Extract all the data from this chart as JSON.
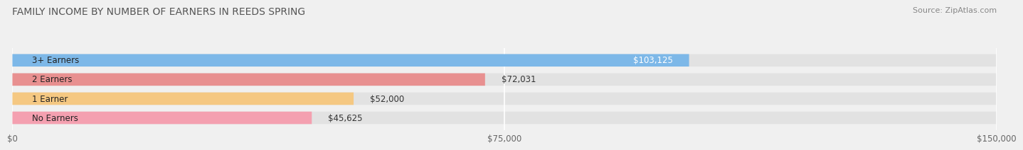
{
  "title": "FAMILY INCOME BY NUMBER OF EARNERS IN REEDS SPRING",
  "source": "Source: ZipAtlas.com",
  "categories": [
    "No Earners",
    "1 Earner",
    "2 Earners",
    "3+ Earners"
  ],
  "values": [
    45625,
    52000,
    72031,
    103125
  ],
  "bar_colors": [
    "#f4a0b0",
    "#f5c882",
    "#e89090",
    "#7db8e8"
  ],
  "label_colors": [
    "#333333",
    "#333333",
    "#333333",
    "#ffffff"
  ],
  "value_labels": [
    "$45,625",
    "$52,000",
    "$72,031",
    "$103,125"
  ],
  "xlim": [
    0,
    150000
  ],
  "xticks": [
    0,
    75000,
    150000
  ],
  "xticklabels": [
    "$0",
    "$75,000",
    "$150,000"
  ],
  "background_color": "#f0f0f0",
  "bar_background_color": "#e2e2e2",
  "title_fontsize": 10,
  "source_fontsize": 8,
  "bar_label_fontsize": 8.5,
  "value_label_fontsize": 8.5,
  "tick_fontsize": 8.5
}
